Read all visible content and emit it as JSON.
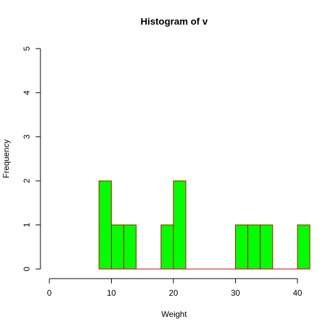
{
  "chart_data": {
    "type": "bar",
    "title": "Histogram of v",
    "xlabel": "Weight",
    "ylabel": "Frequency",
    "bins": [
      {
        "start": 8,
        "end": 10,
        "count": 2
      },
      {
        "start": 10,
        "end": 12,
        "count": 1
      },
      {
        "start": 12,
        "end": 14,
        "count": 1
      },
      {
        "start": 14,
        "end": 16,
        "count": 0
      },
      {
        "start": 16,
        "end": 18,
        "count": 0
      },
      {
        "start": 18,
        "end": 20,
        "count": 1
      },
      {
        "start": 20,
        "end": 22,
        "count": 2
      },
      {
        "start": 22,
        "end": 24,
        "count": 0
      },
      {
        "start": 24,
        "end": 26,
        "count": 0
      },
      {
        "start": 26,
        "end": 28,
        "count": 0
      },
      {
        "start": 28,
        "end": 30,
        "count": 0
      },
      {
        "start": 30,
        "end": 32,
        "count": 1
      },
      {
        "start": 32,
        "end": 34,
        "count": 1
      },
      {
        "start": 34,
        "end": 36,
        "count": 1
      },
      {
        "start": 36,
        "end": 38,
        "count": 0
      },
      {
        "start": 38,
        "end": 40,
        "count": 0
      },
      {
        "start": 40,
        "end": 42,
        "count": 1
      }
    ],
    "xlim": [
      0,
      42
    ],
    "ylim": [
      0,
      5
    ],
    "x_ticks": [
      0,
      10,
      20,
      30,
      40
    ],
    "y_ticks": [
      0,
      1,
      2,
      3,
      4,
      5
    ],
    "grid": false,
    "bar_fill_color": "#00ff00",
    "bar_border_color": "#cc0000"
  }
}
